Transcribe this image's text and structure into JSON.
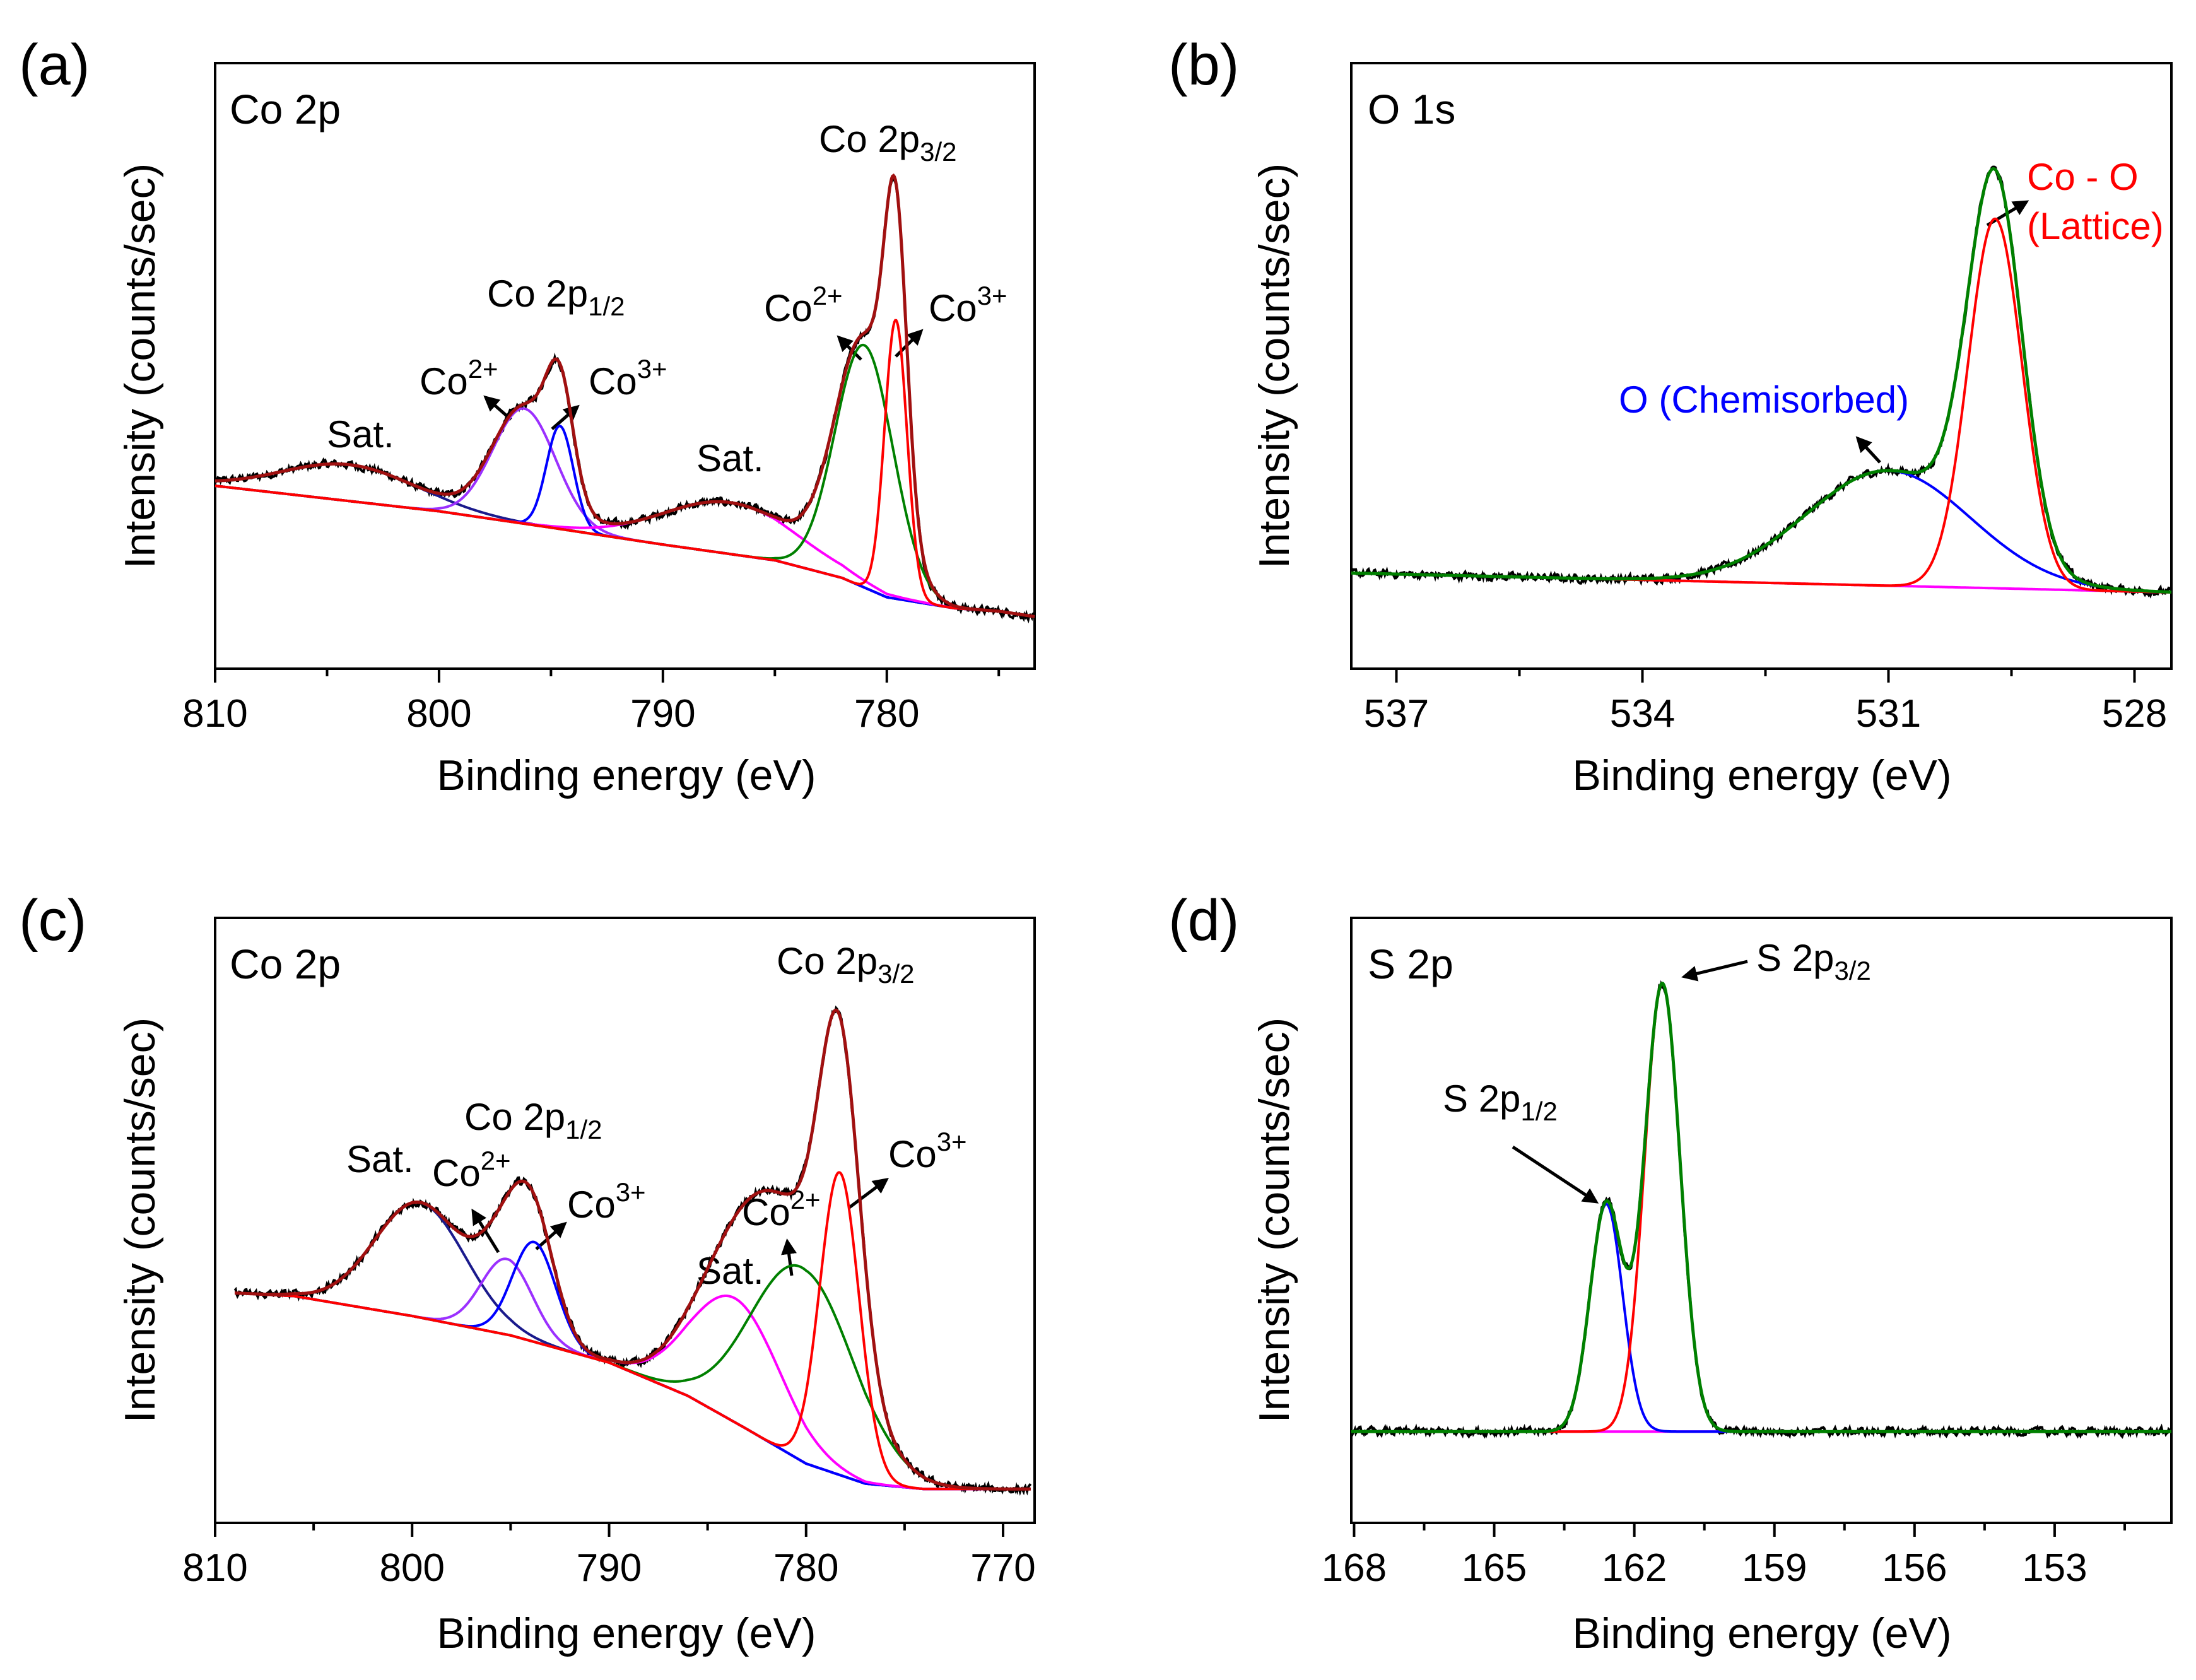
{
  "chart_data": [
    {
      "type": "line",
      "panel": "(a)",
      "title": "Co 2p",
      "xlabel": "Binding energy (eV)",
      "ylabel": "Intensity (counts/sec)",
      "xlim": [
        810,
        773.4
      ],
      "ylim": [
        0,
        1
      ],
      "data_range": [
        810,
        773.4
      ],
      "xticks": [
        810,
        800,
        790,
        780
      ],
      "xticks_minor": [
        805,
        795,
        785,
        775
      ],
      "data_color": "#000000",
      "fit_color": "#a01010",
      "background_color": "#800080",
      "background": [
        [
          810,
          0.302
        ],
        [
          800,
          0.26
        ],
        [
          795,
          0.233
        ],
        [
          790,
          0.205
        ],
        [
          785,
          0.179
        ],
        [
          782,
          0.15
        ],
        [
          780,
          0.118
        ],
        [
          777,
          0.1
        ],
        [
          775,
          0.095
        ],
        [
          773.4,
          0.086
        ]
      ],
      "components": [
        {
          "name": "Sat.",
          "center": 804,
          "amplitude": 0.06,
          "sigma": 3.0,
          "color": "#1a1a8c"
        },
        {
          "name": "Co2+ (2p1/2)",
          "center": 796.2,
          "amplitude": 0.19,
          "sigma": 1.4,
          "color": "#9b30ff"
        },
        {
          "name": "Co3+ (2p1/2)",
          "center": 794.6,
          "amplitude": 0.17,
          "sigma": 0.6,
          "color": "#0000ff"
        },
        {
          "name": "Sat.",
          "center": 787,
          "amplitude": 0.085,
          "sigma": 3.0,
          "color": "#ff00ff"
        },
        {
          "name": "Co2+ (2p3/2)",
          "center": 781,
          "amplitude": 0.4,
          "sigma": 1.3,
          "color": "#008000"
        },
        {
          "name": "Co3+ (2p3/2)",
          "center": 779.6,
          "amplitude": 0.46,
          "sigma": 0.5,
          "color": "#ff0000"
        }
      ],
      "annotations": [
        {
          "main": "Co 2p",
          "sub": "3/2"
        },
        {
          "main": "Co 2p",
          "sub": "1/2"
        },
        {
          "main": "Co",
          "sup": "2+"
        },
        {
          "main": "Co",
          "sup": "3+"
        },
        {
          "main": "Co",
          "sup": "2+"
        },
        {
          "main": "Co",
          "sup": "3+"
        },
        {
          "main": "Sat."
        },
        {
          "main": "Sat."
        }
      ]
    },
    {
      "type": "line",
      "panel": "(b)",
      "title": "O 1s",
      "xlabel": "Binding energy (eV)",
      "ylabel": "Intensity (counts/sec)",
      "xlim": [
        537.55,
        527.55
      ],
      "ylim": [
        0,
        1
      ],
      "data_range": [
        537.55,
        527.55
      ],
      "xticks": [
        537,
        534,
        531,
        528
      ],
      "xticks_minor": [
        535.5,
        532.5,
        529.5
      ],
      "data_color": "#000000",
      "fit_color": "#008000",
      "background_color": "#ff00ff",
      "background": [
        [
          537.55,
          0.158
        ],
        [
          527.55,
          0.126
        ]
      ],
      "components": [
        {
          "name": "O (Chemisorbed)",
          "center": 531.0,
          "amplitude": 0.19,
          "sigma": 1.0,
          "color": "#0000ff"
        },
        {
          "name": "Co - O (Lattice)",
          "center": 529.7,
          "amplitude": 0.61,
          "sigma": 0.33,
          "color": "#ff0000"
        }
      ],
      "annotations": [
        {
          "main": "Co - O"
        },
        {
          "main": "(Lattice)"
        },
        {
          "main": "O (Chemisorbed)"
        }
      ],
      "annotation_colors": {
        "lattice": "#ff0000",
        "chemisorbed": "#0000ff"
      }
    },
    {
      "type": "line",
      "panel": "(c)",
      "title": "Co 2p",
      "xlabel": "Binding energy (eV)",
      "ylabel": "Intensity (counts/sec)",
      "xlim": [
        810,
        768.4
      ],
      "ylim": [
        0,
        1
      ],
      "data_range": [
        809,
        768.6
      ],
      "xticks": [
        810,
        800,
        790,
        780,
        770
      ],
      "xticks_minor": [
        805,
        795,
        785,
        775
      ],
      "data_color": "#000000",
      "fit_color": "#a01010",
      "background_color": "#800080",
      "background": [
        [
          809,
          0.38
        ],
        [
          806,
          0.375
        ],
        [
          800,
          0.342
        ],
        [
          795,
          0.31
        ],
        [
          790,
          0.265
        ],
        [
          786,
          0.21
        ],
        [
          783,
          0.155
        ],
        [
          780,
          0.098
        ],
        [
          777,
          0.065
        ],
        [
          774,
          0.056
        ],
        [
          768.6,
          0.056
        ]
      ],
      "components": [
        {
          "name": "Sat.",
          "center": 799.6,
          "amplitude": 0.19,
          "sigma": 2.3,
          "color": "#1a1a8c"
        },
        {
          "name": "Co2+ (2p1/2)",
          "center": 795.2,
          "amplitude": 0.125,
          "sigma": 1.3,
          "color": "#9b30ff"
        },
        {
          "name": "Co3+ (2p1/2)",
          "center": 793.8,
          "amplitude": 0.165,
          "sigma": 1.1,
          "color": "#0000ff"
        },
        {
          "name": "Sat.",
          "center": 783.6,
          "amplitude": 0.205,
          "sigma": 2.3,
          "color": "#ff00ff"
        },
        {
          "name": "Co2+ (2p3/2)",
          "center": 780.2,
          "amplitude": 0.32,
          "sigma": 2.6,
          "color": "#008000"
        },
        {
          "name": "Co3+ (2p3/2)",
          "center": 778.3,
          "amplitude": 0.5,
          "sigma": 1.0,
          "color": "#ff0000"
        }
      ],
      "annotations": [
        {
          "main": "Co 2p",
          "sub": "3/2"
        },
        {
          "main": "Co 2p",
          "sub": "1/2"
        },
        {
          "main": "Sat."
        },
        {
          "main": "Co",
          "sup": "2+"
        },
        {
          "main": "Co",
          "sup": "3+"
        },
        {
          "main": "Sat."
        },
        {
          "main": "Co",
          "sup": "2+"
        },
        {
          "main": "Co",
          "sup": "3+"
        }
      ]
    },
    {
      "type": "line",
      "panel": "(d)",
      "title": "S 2p",
      "xlabel": "Binding energy (eV)",
      "ylabel": "Intensity (counts/sec)",
      "xlim": [
        168.06,
        150.5
      ],
      "ylim": [
        0,
        1
      ],
      "data_range": [
        168.06,
        150.5
      ],
      "xticks": [
        168,
        165,
        162,
        159,
        156,
        153
      ],
      "xticks_minor": [
        166.5,
        163.5,
        160.5,
        157.5,
        154.5,
        151.5
      ],
      "data_color": "#000000",
      "fit_color": "#008000",
      "background_color": "#ff00ff",
      "background": [
        [
          168.06,
          0.151
        ],
        [
          150.5,
          0.151
        ]
      ],
      "components": [
        {
          "name": "S 2p1/2",
          "center": 162.6,
          "amplitude": 0.376,
          "sigma": 0.35,
          "color": "#0000ff"
        },
        {
          "name": "S 2p3/2",
          "center": 161.4,
          "amplitude": 0.74,
          "sigma": 0.38,
          "color": "#ff0000"
        }
      ],
      "annotations": [
        {
          "main": "S 2p",
          "sub": "3/2"
        },
        {
          "main": "S 2p",
          "sub": "1/2"
        }
      ]
    }
  ]
}
